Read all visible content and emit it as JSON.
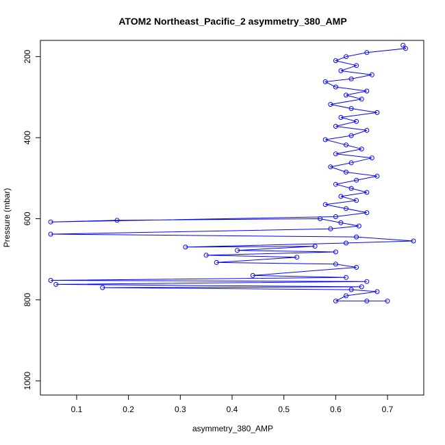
{
  "chart_data": {
    "type": "scatter",
    "title": "ATOM2 Northeast_Pacific_2 asymmetry_380_AMP",
    "xlabel": "asymmetry_380_AMP",
    "ylabel": "Pressure (mbar)",
    "xlim": [
      0.03,
      0.77
    ],
    "ylim": [
      1035,
      160
    ],
    "y_reversed": true,
    "grid": false,
    "x_ticks": [
      0.1,
      0.2,
      0.3,
      0.4,
      0.5,
      0.6,
      0.7
    ],
    "x_tick_labels": [
      "0.1",
      "0.2",
      "0.3",
      "0.4",
      "0.5",
      "0.6",
      "0.7"
    ],
    "y_ticks": [
      200,
      400,
      600,
      800,
      1000
    ],
    "y_tick_labels": [
      "200",
      "400",
      "600",
      "800",
      "1000"
    ],
    "series": [
      {
        "color": "#0000ff",
        "connected": true,
        "marker": "open-circle",
        "points": [
          [
            0.73,
            172
          ],
          [
            0.735,
            180
          ],
          [
            0.66,
            190
          ],
          [
            0.62,
            200
          ],
          [
            0.6,
            210
          ],
          [
            0.64,
            222
          ],
          [
            0.61,
            235
          ],
          [
            0.67,
            245
          ],
          [
            0.63,
            255
          ],
          [
            0.58,
            262
          ],
          [
            0.6,
            275
          ],
          [
            0.66,
            285
          ],
          [
            0.62,
            295
          ],
          [
            0.65,
            305
          ],
          [
            0.59,
            318
          ],
          [
            0.63,
            328
          ],
          [
            0.68,
            338
          ],
          [
            0.61,
            350
          ],
          [
            0.64,
            360
          ],
          [
            0.6,
            372
          ],
          [
            0.66,
            382
          ],
          [
            0.63,
            395
          ],
          [
            0.58,
            405
          ],
          [
            0.62,
            418
          ],
          [
            0.65,
            428
          ],
          [
            0.6,
            440
          ],
          [
            0.67,
            450
          ],
          [
            0.63,
            462
          ],
          [
            0.59,
            472
          ],
          [
            0.62,
            485
          ],
          [
            0.68,
            495
          ],
          [
            0.64,
            505
          ],
          [
            0.6,
            515
          ],
          [
            0.63,
            525
          ],
          [
            0.66,
            535
          ],
          [
            0.61,
            545
          ],
          [
            0.64,
            555
          ],
          [
            0.58,
            565
          ],
          [
            0.62,
            575
          ],
          [
            0.66,
            585
          ],
          [
            0.6,
            595
          ],
          [
            0.05,
            608
          ],
          [
            0.178,
            604
          ],
          [
            0.57,
            600
          ],
          [
            0.61,
            610
          ],
          [
            0.645,
            618
          ],
          [
            0.59,
            625
          ],
          [
            0.05,
            638
          ],
          [
            0.64,
            645
          ],
          [
            0.75,
            655
          ],
          [
            0.62,
            660
          ],
          [
            0.31,
            670
          ],
          [
            0.56,
            668
          ],
          [
            0.41,
            678
          ],
          [
            0.6,
            682
          ],
          [
            0.35,
            690
          ],
          [
            0.525,
            695
          ],
          [
            0.37,
            708
          ],
          [
            0.6,
            712
          ],
          [
            0.64,
            720
          ],
          [
            0.44,
            740
          ],
          [
            0.62,
            745
          ],
          [
            0.05,
            752
          ],
          [
            0.66,
            755
          ],
          [
            0.06,
            762
          ],
          [
            0.65,
            768
          ],
          [
            0.15,
            770
          ],
          [
            0.63,
            775
          ],
          [
            0.68,
            780
          ],
          [
            0.62,
            790
          ],
          [
            0.6,
            803
          ],
          [
            0.66,
            803
          ],
          [
            0.7,
            803
          ]
        ]
      }
    ]
  }
}
